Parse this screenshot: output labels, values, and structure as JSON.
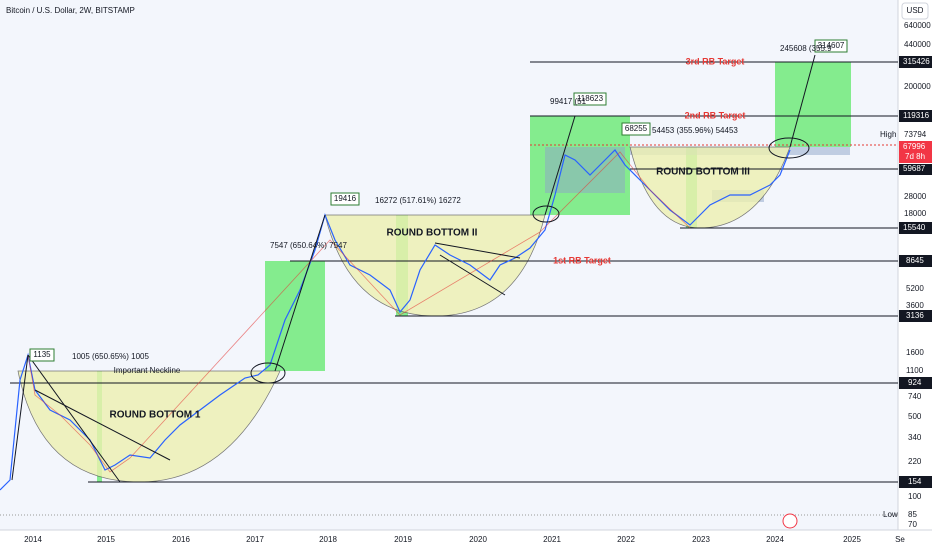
{
  "header": {
    "title": "Bitcoin / U.S. Dollar, 2W, BITSTAMP",
    "currency": "USD"
  },
  "price_axis": {
    "labels": [
      "640000",
      "440000",
      "315426",
      "200000",
      "119316",
      "73794",
      "67996",
      "7d 8h",
      "59687",
      "28000",
      "18000",
      "15540",
      "8645",
      "5200",
      "3600",
      "3136",
      "1600",
      "1100",
      "924",
      "740",
      "500",
      "340",
      "220",
      "154",
      "100",
      "85",
      "70"
    ],
    "high": "High",
    "low": "Low"
  },
  "time_axis": {
    "labels": [
      "2014",
      "2015",
      "2016",
      "2017",
      "2018",
      "2019",
      "2020",
      "2021",
      "2022",
      "2023",
      "2024",
      "2025",
      "Se"
    ]
  },
  "annotations": {
    "targets": [
      "3rd RB Target",
      "2nd RB Target",
      "1st RB Target"
    ],
    "patterns": [
      "ROUND BOTTOM 1",
      "ROUND BOTTOM II",
      "ROUND BOTTOM III"
    ],
    "neckline": "Important Neckline",
    "peaks": [
      "1135",
      "19416",
      "118623",
      "68255",
      "314607"
    ],
    "measures": [
      "1005 (650.65%) 1005",
      "7547 (650.64%) 7547",
      "16272 (517.61%) 16272",
      "99417 (51",
      "54453 (355.96%) 54453",
      "245608 (355.9"
    ]
  }
}
